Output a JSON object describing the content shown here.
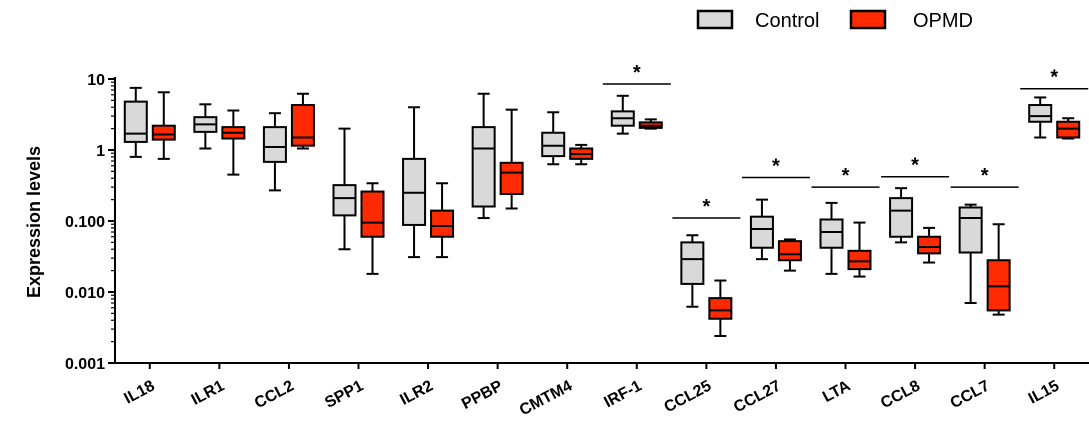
{
  "chart_data": {
    "type": "boxplot",
    "title": "",
    "ylabel": "Expression levels",
    "xlabel": "",
    "yscale": "log",
    "ylim": [
      0.001,
      10
    ],
    "yticks": [
      {
        "value": 10,
        "label": "10"
      },
      {
        "value": 1,
        "label": "1"
      },
      {
        "value": 0.1,
        "label": "0.100"
      },
      {
        "value": 0.01,
        "label": "0.010"
      },
      {
        "value": 0.001,
        "label": "0.001"
      }
    ],
    "grid": false,
    "legend_position": "top-right",
    "categories": [
      "IL18",
      "ILR1",
      "CCL2",
      "SPP1",
      "ILR2",
      "PPBP",
      "CMTM4",
      "IRF-1",
      "CCL25",
      "CCL27",
      "LTA",
      "CCL8",
      "CCL7",
      "IL15"
    ],
    "series": [
      {
        "name": "Control",
        "color": "#d9d9d9",
        "boxes": [
          {
            "min": 0.8,
            "q1": 1.3,
            "median": 1.7,
            "q3": 4.8,
            "max": 7.5
          },
          {
            "min": 1.05,
            "q1": 1.8,
            "median": 2.3,
            "q3": 2.9,
            "max": 4.4
          },
          {
            "min": 0.27,
            "q1": 0.68,
            "median": 1.1,
            "q3": 2.1,
            "max": 3.3
          },
          {
            "min": 0.04,
            "q1": 0.12,
            "median": 0.21,
            "q3": 0.32,
            "max": 2.0
          },
          {
            "min": 0.031,
            "q1": 0.088,
            "median": 0.25,
            "q3": 0.75,
            "max": 4.0
          },
          {
            "min": 0.11,
            "q1": 0.16,
            "median": 1.05,
            "q3": 2.1,
            "max": 6.2
          },
          {
            "min": 0.63,
            "q1": 0.82,
            "median": 1.15,
            "q3": 1.75,
            "max": 3.4
          },
          {
            "min": 1.7,
            "q1": 2.2,
            "median": 2.8,
            "q3": 3.5,
            "max": 5.8
          },
          {
            "min": 0.0062,
            "q1": 0.013,
            "median": 0.029,
            "q3": 0.05,
            "max": 0.063
          },
          {
            "min": 0.029,
            "q1": 0.042,
            "median": 0.077,
            "q3": 0.115,
            "max": 0.2
          },
          {
            "min": 0.018,
            "q1": 0.042,
            "median": 0.07,
            "q3": 0.105,
            "max": 0.18
          },
          {
            "min": 0.05,
            "q1": 0.06,
            "median": 0.14,
            "q3": 0.21,
            "max": 0.29
          },
          {
            "min": 0.007,
            "q1": 0.036,
            "median": 0.11,
            "q3": 0.155,
            "max": 0.17
          },
          {
            "min": 1.5,
            "q1": 2.5,
            "median": 3.0,
            "q3": 4.3,
            "max": 5.5
          }
        ]
      },
      {
        "name": "OPMD",
        "color": "#ff2a00",
        "boxes": [
          {
            "min": 0.75,
            "q1": 1.4,
            "median": 1.65,
            "q3": 2.2,
            "max": 6.5
          },
          {
            "min": 0.45,
            "q1": 1.45,
            "median": 1.75,
            "q3": 2.1,
            "max": 3.6
          },
          {
            "min": 1.05,
            "q1": 1.15,
            "median": 1.5,
            "q3": 4.3,
            "max": 6.2
          },
          {
            "min": 0.018,
            "q1": 0.06,
            "median": 0.095,
            "q3": 0.26,
            "max": 0.34
          },
          {
            "min": 0.031,
            "q1": 0.06,
            "median": 0.085,
            "q3": 0.14,
            "max": 0.34
          },
          {
            "min": 0.15,
            "q1": 0.24,
            "median": 0.48,
            "q3": 0.66,
            "max": 3.7
          },
          {
            "min": 0.63,
            "q1": 0.75,
            "median": 0.88,
            "q3": 1.05,
            "max": 1.18
          },
          {
            "min": 2.0,
            "q1": 2.05,
            "median": 2.2,
            "q3": 2.45,
            "max": 2.7
          },
          {
            "min": 0.0024,
            "q1": 0.0042,
            "median": 0.0055,
            "q3": 0.0082,
            "max": 0.0145
          },
          {
            "min": 0.02,
            "q1": 0.028,
            "median": 0.034,
            "q3": 0.052,
            "max": 0.055
          },
          {
            "min": 0.0165,
            "q1": 0.021,
            "median": 0.027,
            "q3": 0.038,
            "max": 0.095
          },
          {
            "min": 0.026,
            "q1": 0.035,
            "median": 0.043,
            "q3": 0.06,
            "max": 0.08
          },
          {
            "min": 0.0048,
            "q1": 0.0055,
            "median": 0.012,
            "q3": 0.028,
            "max": 0.09
          },
          {
            "min": 1.45,
            "q1": 1.5,
            "median": 2.0,
            "q3": 2.5,
            "max": 2.8
          }
        ]
      }
    ],
    "significance": [
      {
        "category": "IRF-1",
        "label": "*",
        "y": 8.5
      },
      {
        "category": "CCL25",
        "label": "*",
        "y": 0.11
      },
      {
        "category": "CCL27",
        "label": "*",
        "y": 0.41
      },
      {
        "category": "LTA",
        "label": "*",
        "y": 0.3
      },
      {
        "category": "CCL8",
        "label": "*",
        "y": 0.42
      },
      {
        "category": "CCL7",
        "label": "*",
        "y": 0.3
      },
      {
        "category": "IL15",
        "label": "*",
        "y": 7.3
      }
    ]
  }
}
